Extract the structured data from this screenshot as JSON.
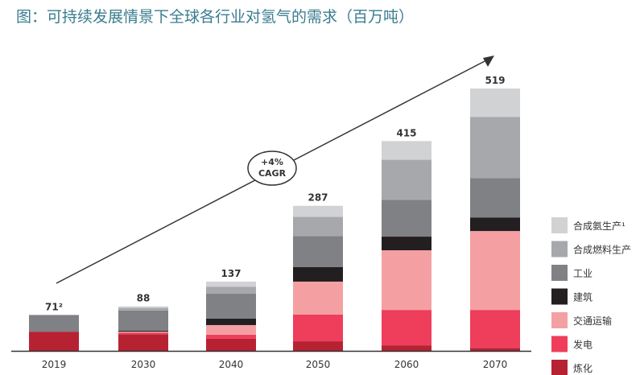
{
  "chart_data": {
    "type": "bar",
    "stacked": true,
    "title": "图：可持续发展情景下全球各行业对氢气的需求（百万吨）",
    "categories": [
      "2019",
      "2030",
      "2040",
      "2050",
      "2060",
      "2070"
    ],
    "totals": [
      "71²",
      "88",
      "137",
      "287",
      "415",
      "519"
    ],
    "annotation": {
      "line1": "+4%",
      "line2": "CAGR"
    },
    "series": [
      {
        "name": "炼化",
        "color": "#b72233",
        "values": [
          38,
          33,
          24,
          19,
          11,
          6
        ]
      },
      {
        "name": "发电",
        "color": "#ef3e5c",
        "values": [
          0,
          3,
          8,
          53,
          70,
          75
        ]
      },
      {
        "name": "交通运输",
        "color": "#f4a0a3",
        "values": [
          0,
          2,
          19,
          65,
          118,
          156
        ]
      },
      {
        "name": "建筑",
        "color": "#231f20",
        "values": [
          0,
          2,
          13,
          29,
          27,
          27
        ]
      },
      {
        "name": "工业",
        "color": "#808184",
        "values": [
          33,
          40,
          49,
          61,
          73,
          78
        ]
      },
      {
        "name": "合成燃料生产",
        "color": "#a7a8ab",
        "values": [
          0,
          5,
          14,
          38,
          79,
          121
        ]
      },
      {
        "name": "合成氨生产¹",
        "color": "#d1d2d4",
        "values": [
          0,
          3,
          10,
          22,
          37,
          56
        ]
      }
    ],
    "ylim": [
      0,
      519
    ],
    "legend": "right"
  }
}
